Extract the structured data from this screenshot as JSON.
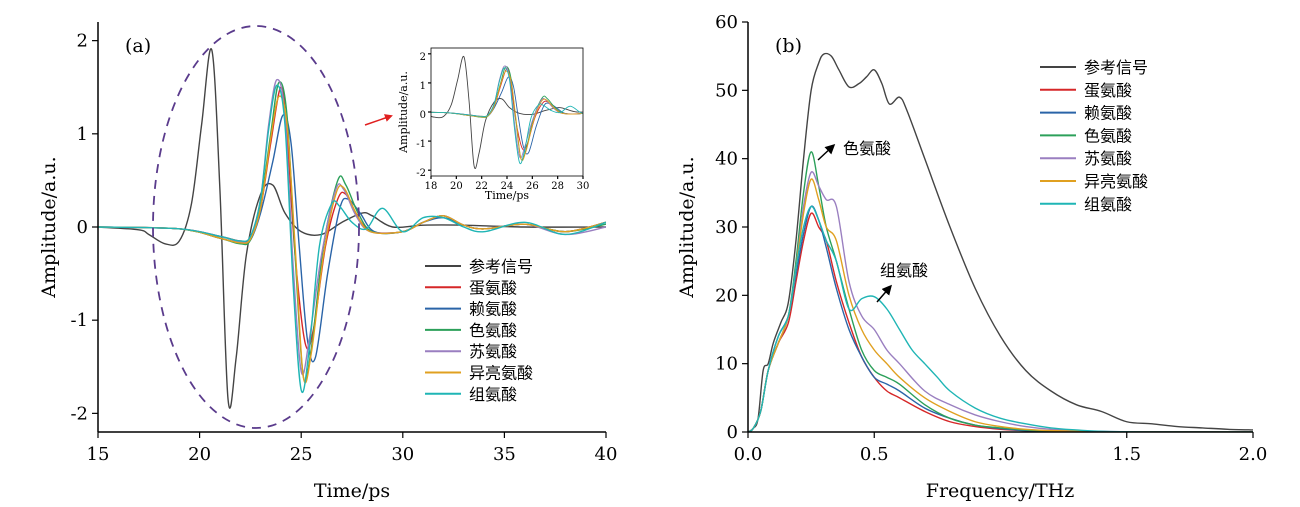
{
  "colors": {
    "参考信号": "#444444",
    "蛋氨酸": "#d62728",
    "赖氨酸": "#2a64a8",
    "色氨酸": "#2ca05a",
    "苏氨酸": "#9a7fc0",
    "异亮氨酸": "#e0a020",
    "组氨酸": "#1fb5b5",
    "ellipse": "#5a3b8c",
    "arrow_red": "#e02020",
    "arrow_black": "#000000"
  },
  "chart_data": [
    {
      "type": "line",
      "panel_label": "(a)",
      "xlabel": "Time/ps",
      "ylabel": "Amplitude/a.u.",
      "xlim": [
        15,
        40
      ],
      "ylim": [
        -2.2,
        2.2
      ],
      "xticks": [
        15,
        20,
        25,
        30,
        35,
        40
      ],
      "yticks": [
        -2,
        -1,
        0,
        1,
        2
      ],
      "xtick_labels": [
        "15",
        "20",
        "25",
        "30",
        "35",
        "40"
      ],
      "ytick_labels": [
        "-2",
        "-1",
        "0",
        "1",
        "2"
      ],
      "legend": [
        "参考信号",
        "蛋氨酸",
        "赖氨酸",
        "色氨酸",
        "苏氨酸",
        "异亮氨酸",
        "组氨酸"
      ],
      "legend_position": "lower-right",
      "series": [
        {
          "name": "参考信号",
          "x": [
            15,
            17,
            17.5,
            18.3,
            19,
            19.6,
            20.1,
            20.6,
            21.0,
            21.4,
            21.8,
            22.3,
            23,
            23.6,
            24.2,
            25,
            26,
            27,
            28,
            28.5,
            29.5,
            31,
            33,
            36,
            40
          ],
          "y": [
            0,
            -0.03,
            -0.08,
            -0.18,
            -0.15,
            0.25,
            1.1,
            1.9,
            0.4,
            -1.85,
            -1.4,
            -0.3,
            0.35,
            0.45,
            0.15,
            -0.05,
            -0.08,
            0.05,
            0.15,
            0.12,
            0,
            0.02,
            0.02,
            0,
            0
          ]
        },
        {
          "name": "蛋氨酸",
          "x": [
            15,
            19,
            21,
            22,
            22.5,
            23,
            23.5,
            24.0,
            24.3,
            24.7,
            25.2,
            25.6,
            26.2,
            26.8,
            27.2,
            27.8,
            28.5,
            30,
            31,
            32,
            33,
            34,
            36,
            38,
            40
          ],
          "y": [
            0,
            -0.02,
            -0.1,
            -0.15,
            -0.12,
            0.2,
            0.9,
            1.5,
            1.0,
            -0.3,
            -1.25,
            -1.1,
            -0.2,
            0.3,
            0.35,
            0.1,
            -0.05,
            -0.05,
            0.05,
            0.12,
            0.02,
            -0.02,
            0.03,
            -0.05,
            0.05
          ]
        },
        {
          "name": "赖氨酸",
          "x": [
            15,
            19,
            21,
            22,
            22.5,
            23,
            23.6,
            24.1,
            24.5,
            24.9,
            25.3,
            25.7,
            26.3,
            26.9,
            27.3,
            27.9,
            28.6,
            30,
            31,
            32,
            33,
            34,
            36,
            38,
            40
          ],
          "y": [
            0,
            -0.02,
            -0.12,
            -0.17,
            -0.14,
            0.15,
            0.7,
            1.2,
            0.9,
            -0.2,
            -1.2,
            -1.4,
            -0.5,
            0.2,
            0.3,
            0.15,
            -0.05,
            -0.05,
            0.05,
            0.1,
            0.02,
            -0.02,
            0.03,
            -0.05,
            0.05
          ]
        },
        {
          "name": "色氨酸",
          "x": [
            15,
            19,
            21,
            22,
            22.5,
            23,
            23.5,
            23.9,
            24.3,
            24.7,
            25.1,
            25.5,
            26.1,
            26.8,
            27.2,
            27.8,
            28.5,
            30,
            31,
            32,
            33,
            34,
            36,
            38,
            40
          ],
          "y": [
            0,
            -0.02,
            -0.12,
            -0.18,
            -0.14,
            0.25,
            1.0,
            1.55,
            1.2,
            -0.3,
            -1.6,
            -1.3,
            -0.2,
            0.5,
            0.45,
            0.15,
            -0.05,
            -0.05,
            0.05,
            0.12,
            0.02,
            -0.02,
            0.03,
            -0.05,
            0.03
          ]
        },
        {
          "name": "苏氨酸",
          "x": [
            15,
            19,
            21,
            22,
            22.5,
            23,
            23.4,
            23.8,
            24.2,
            24.6,
            25.0,
            25.4,
            26.0,
            26.7,
            27.1,
            27.7,
            28.4,
            30,
            31,
            32,
            33,
            34,
            36,
            38,
            40
          ],
          "y": [
            0,
            -0.02,
            -0.1,
            -0.16,
            -0.12,
            0.3,
            1.1,
            1.58,
            1.2,
            -0.4,
            -1.55,
            -1.2,
            -0.3,
            0.4,
            0.4,
            0.12,
            -0.05,
            -0.05,
            0.05,
            0.12,
            0.02,
            -0.02,
            0.03,
            -0.08,
            0.0
          ]
        },
        {
          "name": "异亮氨酸",
          "x": [
            15,
            19,
            21,
            22,
            22.5,
            23,
            23.5,
            23.9,
            24.3,
            24.7,
            25.1,
            25.5,
            26.1,
            26.7,
            27.1,
            27.7,
            28.4,
            30,
            31,
            32,
            33,
            34,
            36,
            38,
            40
          ],
          "y": [
            0,
            -0.02,
            -0.12,
            -0.17,
            -0.13,
            0.2,
            0.95,
            1.4,
            1.1,
            -0.2,
            -1.6,
            -1.35,
            -0.3,
            0.35,
            0.42,
            0.15,
            -0.05,
            -0.05,
            0.05,
            0.12,
            0.02,
            -0.02,
            0.03,
            -0.05,
            0.05
          ]
        },
        {
          "name": "组氨酸",
          "x": [
            15,
            19,
            21,
            22,
            22.5,
            23,
            23.4,
            23.8,
            24.2,
            24.6,
            25.0,
            25.4,
            25.9,
            26.5,
            26.9,
            27.5,
            28.2,
            29,
            30,
            31,
            32,
            33,
            34,
            36,
            38,
            40
          ],
          "y": [
            0,
            -0.02,
            -0.1,
            -0.15,
            -0.1,
            0.3,
            1.05,
            1.52,
            1.1,
            -0.6,
            -1.75,
            -1.3,
            -0.2,
            0.25,
            0.22,
            0.05,
            -0.02,
            0.2,
            -0.05,
            0.1,
            0.1,
            0.0,
            -0.05,
            0.05,
            -0.08,
            0.05
          ]
        }
      ],
      "inset": {
        "xlabel": "Time/ps",
        "ylabel": "Amplitude/a.u.",
        "xlim": [
          18,
          30
        ],
        "ylim": [
          -2.2,
          2.2
        ],
        "xticks": [
          18,
          20,
          22,
          24,
          26,
          28,
          30
        ],
        "yticks": [
          -2,
          -1,
          0,
          1,
          2
        ],
        "xtick_labels": [
          "18",
          "20",
          "22",
          "24",
          "26",
          "28",
          "30"
        ],
        "ytick_labels": [
          "-2",
          "-1",
          "0",
          "1",
          "2"
        ]
      }
    },
    {
      "type": "line",
      "panel_label": "(b)",
      "xlabel": "Frequency/THz",
      "ylabel": "Amplitude/a.u.",
      "xlim": [
        0,
        2.0
      ],
      "ylim": [
        0,
        60
      ],
      "xticks": [
        0,
        0.5,
        1.0,
        1.5,
        2.0
      ],
      "yticks": [
        0,
        10,
        20,
        30,
        40,
        50,
        60
      ],
      "xtick_labels": [
        "0.0",
        "0.5",
        "1.0",
        "1.5",
        "2.0"
      ],
      "ytick_labels": [
        "0",
        "10",
        "20",
        "30",
        "40",
        "50",
        "60"
      ],
      "legend": [
        "参考信号",
        "蛋氨酸",
        "赖氨酸",
        "色氨酸",
        "苏氨酸",
        "异亮氨酸",
        "组氨酸"
      ],
      "legend_position": "upper-right",
      "annotations": [
        {
          "text": "色氨酸",
          "x": 0.27,
          "y": 41
        },
        {
          "text": "组氨酸",
          "x": 0.46,
          "y": 20
        }
      ],
      "series": [
        {
          "name": "参考信号",
          "x": [
            0,
            0.02,
            0.04,
            0.06,
            0.08,
            0.1,
            0.13,
            0.16,
            0.19,
            0.22,
            0.25,
            0.28,
            0.3,
            0.33,
            0.36,
            0.4,
            0.44,
            0.47,
            0.5,
            0.53,
            0.56,
            0.6,
            0.63,
            0.7,
            0.8,
            0.9,
            1.0,
            1.1,
            1.2,
            1.3,
            1.4,
            1.5,
            1.6,
            1.7,
            1.8,
            1.9,
            2.0
          ],
          "y": [
            0,
            0.5,
            2,
            9,
            10,
            13,
            16,
            19,
            28,
            40,
            50,
            54,
            55.3,
            55,
            53,
            50.5,
            51,
            52,
            53,
            51,
            48,
            49,
            47,
            40,
            30,
            21,
            14,
            9,
            6,
            4,
            3,
            1.5,
            1.2,
            0.8,
            0.6,
            0.4,
            0.3
          ]
        },
        {
          "name": "蛋氨酸",
          "x": [
            0,
            0.02,
            0.05,
            0.08,
            0.12,
            0.16,
            0.19,
            0.22,
            0.25,
            0.28,
            0.31,
            0.35,
            0.4,
            0.45,
            0.5,
            0.55,
            0.6,
            0.7,
            0.8,
            0.9,
            1.0,
            1.1,
            1.2,
            1.4,
            1.6,
            2.0
          ],
          "y": [
            0,
            0.5,
            3,
            9,
            13,
            16,
            22,
            28,
            32,
            30,
            28,
            22,
            16,
            11,
            8,
            6,
            5,
            3,
            1.5,
            0.8,
            0.4,
            0.2,
            0.1,
            0,
            0,
            0
          ]
        },
        {
          "name": "赖氨酸",
          "x": [
            0,
            0.02,
            0.05,
            0.08,
            0.12,
            0.16,
            0.19,
            0.22,
            0.25,
            0.28,
            0.31,
            0.35,
            0.4,
            0.45,
            0.5,
            0.55,
            0.6,
            0.7,
            0.8,
            0.9,
            1.0,
            1.1,
            1.2,
            1.4,
            1.6,
            2.0
          ],
          "y": [
            0,
            0.5,
            3,
            9,
            14,
            17,
            23,
            29,
            33,
            31,
            27,
            21,
            15,
            11,
            8,
            7,
            6,
            3.5,
            2,
            1,
            0.5,
            0.2,
            0.1,
            0,
            0,
            0
          ]
        },
        {
          "name": "色氨酸",
          "x": [
            0,
            0.02,
            0.05,
            0.08,
            0.12,
            0.16,
            0.19,
            0.22,
            0.25,
            0.28,
            0.31,
            0.35,
            0.4,
            0.45,
            0.5,
            0.55,
            0.6,
            0.7,
            0.8,
            0.9,
            1.0,
            1.1,
            1.2,
            1.4,
            1.6,
            2.0
          ],
          "y": [
            0,
            0.5,
            3,
            9,
            13,
            17,
            25,
            35,
            41,
            36,
            30,
            25,
            18,
            12,
            9,
            8,
            7,
            4,
            2,
            1,
            0.6,
            0.3,
            0.1,
            0,
            0,
            0
          ]
        },
        {
          "name": "苏氨酸",
          "x": [
            0,
            0.02,
            0.05,
            0.08,
            0.12,
            0.16,
            0.19,
            0.22,
            0.25,
            0.28,
            0.31,
            0.35,
            0.4,
            0.45,
            0.5,
            0.55,
            0.6,
            0.7,
            0.8,
            0.9,
            1.0,
            1.1,
            1.2,
            1.4,
            1.6,
            2.0
          ],
          "y": [
            0,
            0.5,
            3,
            9,
            13,
            17,
            24,
            33,
            38,
            36,
            34,
            33,
            22,
            17,
            15,
            12,
            10,
            6,
            4,
            2.5,
            1.5,
            0.8,
            0.4,
            0.1,
            0,
            0
          ]
        },
        {
          "name": "异亮氨酸",
          "x": [
            0,
            0.02,
            0.05,
            0.08,
            0.12,
            0.16,
            0.19,
            0.22,
            0.25,
            0.28,
            0.31,
            0.35,
            0.4,
            0.45,
            0.5,
            0.55,
            0.6,
            0.7,
            0.8,
            0.9,
            1.0,
            1.1,
            1.2,
            1.4,
            1.6,
            2.0
          ],
          "y": [
            0,
            0.5,
            3,
            9,
            13,
            17,
            24,
            32,
            37,
            34,
            30,
            28,
            20,
            15,
            12,
            10,
            8,
            5,
            3,
            1.5,
            0.8,
            0.4,
            0.2,
            0.05,
            0,
            0
          ]
        },
        {
          "name": "组氨酸",
          "x": [
            0,
            0.02,
            0.05,
            0.08,
            0.12,
            0.16,
            0.19,
            0.22,
            0.25,
            0.28,
            0.31,
            0.35,
            0.4,
            0.45,
            0.5,
            0.55,
            0.6,
            0.65,
            0.7,
            0.75,
            0.8,
            0.9,
            1.0,
            1.1,
            1.2,
            1.3,
            1.4,
            1.6,
            2.0
          ],
          "y": [
            0,
            0.5,
            3,
            9,
            14,
            17,
            24,
            30,
            33,
            31,
            28,
            25,
            18,
            19.5,
            19.8,
            18,
            15,
            12,
            10,
            8,
            6,
            3.5,
            2,
            1.2,
            0.6,
            0.3,
            0.1,
            0,
            0
          ]
        }
      ]
    }
  ]
}
